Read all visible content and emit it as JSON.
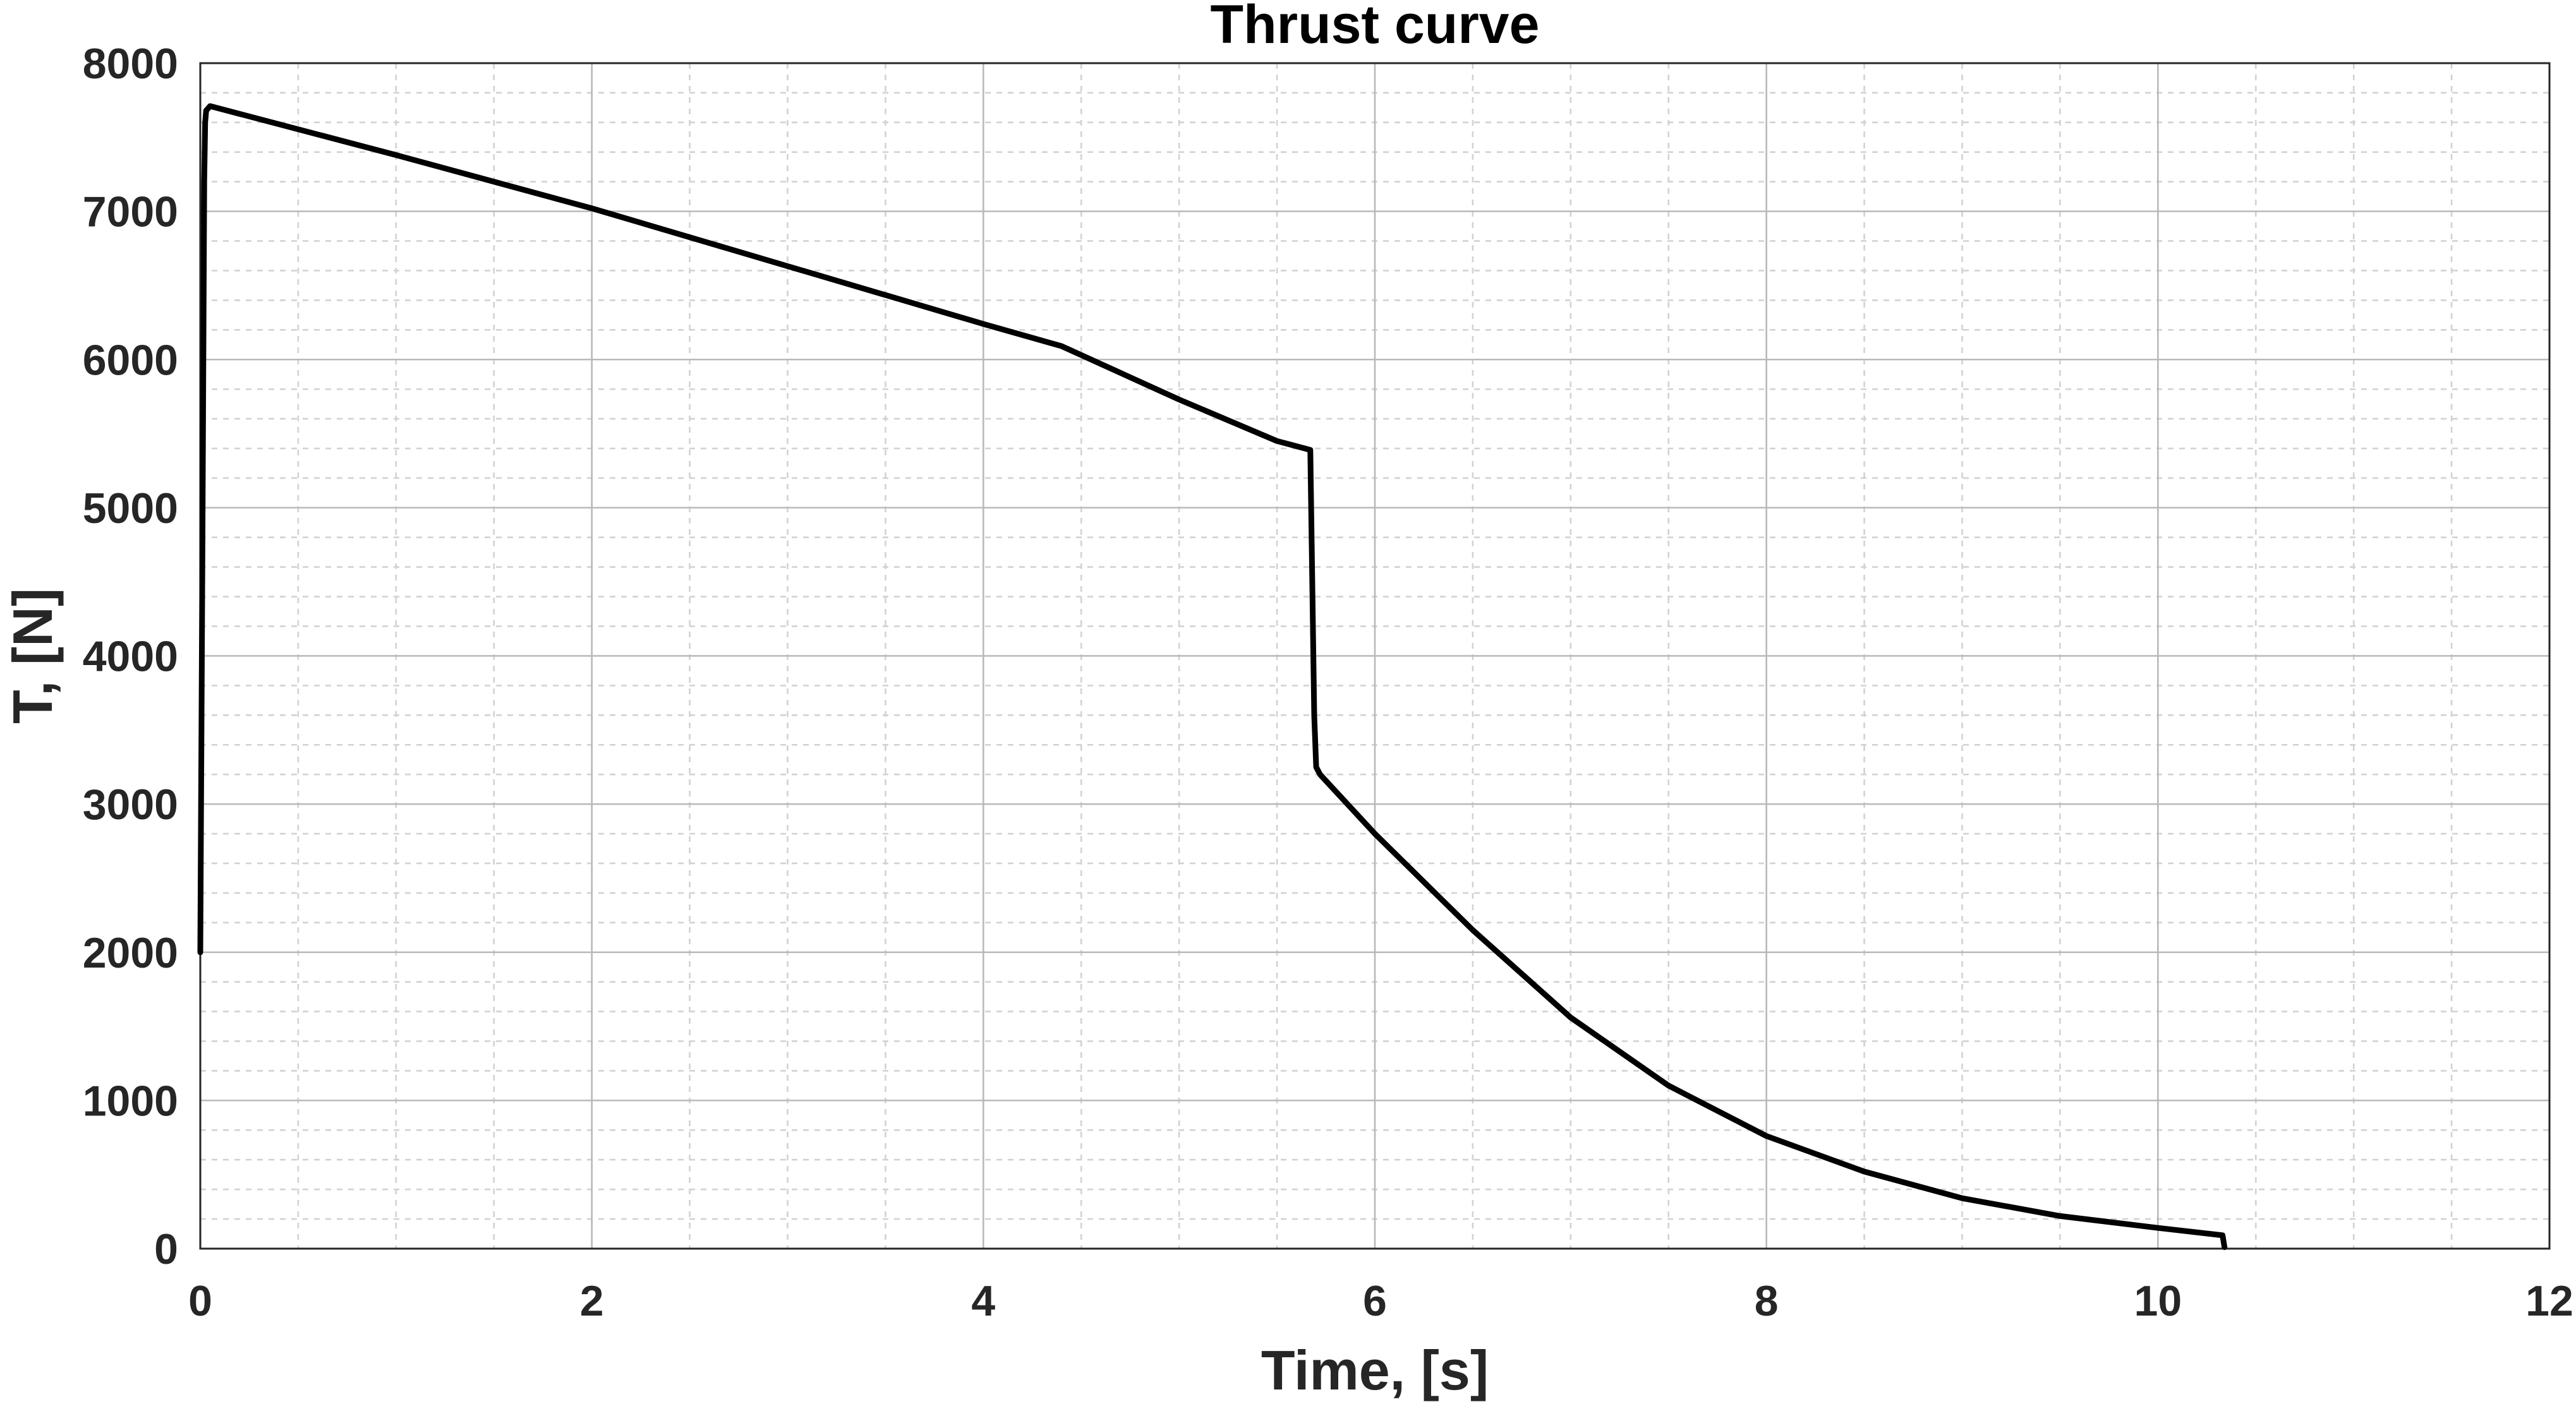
{
  "chart_data": {
    "type": "line",
    "title": "Thrust curve",
    "xlabel": "Time, [s]",
    "ylabel": "T, [N]",
    "xlim": [
      0,
      12
    ],
    "ylim": [
      0,
      8000
    ],
    "x_ticks": [
      0,
      2,
      4,
      6,
      8,
      10,
      12
    ],
    "x_tick_labels": [
      "0",
      "2",
      "4",
      "6",
      "8",
      "10",
      "12"
    ],
    "y_ticks": [
      0,
      1000,
      2000,
      3000,
      4000,
      5000,
      6000,
      7000,
      8000
    ],
    "y_tick_labels": [
      "0",
      "1000",
      "2000",
      "3000",
      "4000",
      "5000",
      "6000",
      "7000",
      "8000"
    ],
    "x_minor_step": 0.5,
    "y_minor_step": 200,
    "grid": true,
    "minor_grid": true,
    "color": "#000000",
    "series": [
      {
        "x": [
          0.0,
          0.01,
          0.02,
          0.025,
          0.03,
          0.05,
          1.0,
          2.0,
          3.0,
          4.0,
          4.4,
          5.0,
          5.5,
          5.67,
          5.68,
          5.69,
          5.7,
          5.72,
          6.0,
          6.5,
          7.0,
          7.5,
          8.0,
          8.5,
          9.0,
          9.5,
          10.0,
          10.33,
          10.34
        ],
        "y": [
          2000,
          4500,
          7200,
          7600,
          7680,
          7710,
          7380,
          7020,
          6630,
          6240,
          6090,
          5730,
          5450,
          5390,
          4500,
          3600,
          3250,
          3200,
          2800,
          2150,
          1560,
          1100,
          760,
          520,
          340,
          220,
          140,
          90,
          10
        ]
      }
    ]
  }
}
